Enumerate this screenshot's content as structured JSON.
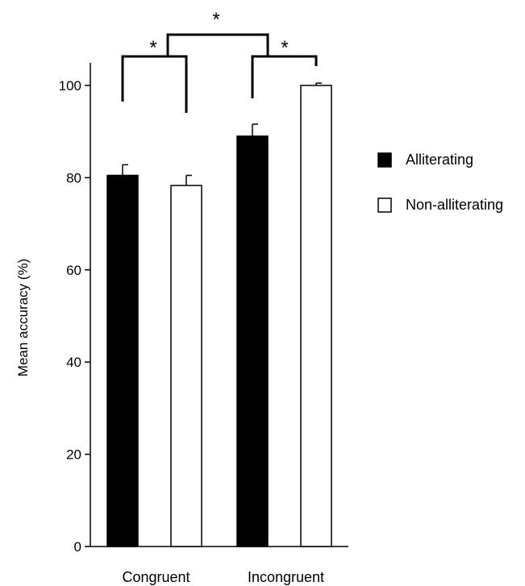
{
  "chart_data": {
    "type": "bar",
    "categories": [
      "Congruent",
      "Incongruent"
    ],
    "series": [
      {
        "name": "Alliterating",
        "values": [
          80.5,
          89
        ],
        "errors": [
          2.3,
          2.6
        ],
        "fill": "#000000"
      },
      {
        "name": "Non-alliterating",
        "values": [
          78.3,
          100
        ],
        "errors": [
          2.2,
          0.5
        ],
        "fill": "#ffffff"
      }
    ],
    "ylabel": "Mean accuracy (%)",
    "ylim": [
      0,
      100
    ],
    "yticks": [
      0,
      20,
      40,
      60,
      80,
      100
    ],
    "grid": false,
    "legend_position": "right",
    "significance": [
      {
        "label": "*",
        "comparison": "Congruent: Alliterating vs Non-alliterating"
      },
      {
        "label": "*",
        "comparison": "Incongruent: Alliterating vs Non-alliterating"
      },
      {
        "label": "*",
        "comparison": "Congruent vs Incongruent"
      }
    ]
  }
}
